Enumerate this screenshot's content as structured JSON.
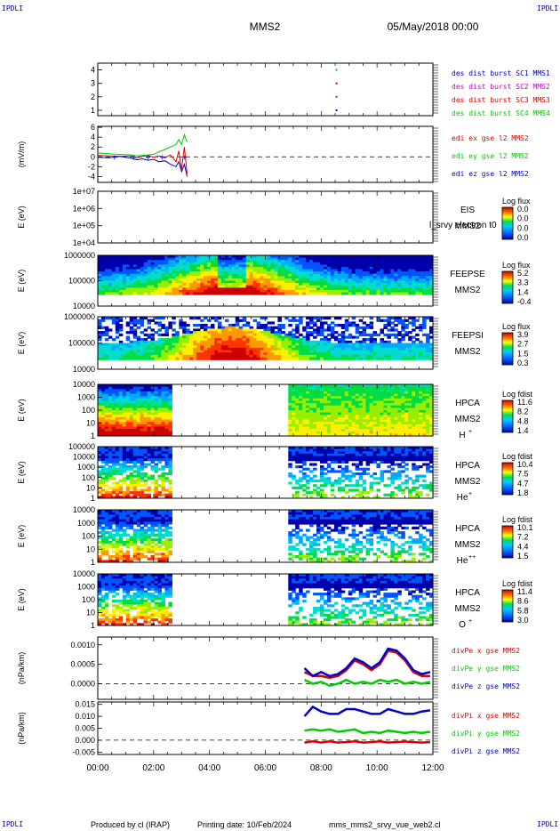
{
  "header": {
    "corner_label": "IPDLI",
    "spacecraft": "MMS2",
    "date": "05/May/2018 00:00"
  },
  "footer": {
    "producer": "Produced by cl (IRAP)",
    "printing": "Printing date: 10/Feb/2024",
    "script": "mms_mms2_srvy_vue_web2.cl"
  },
  "time_axis": {
    "ticks": [
      "00:00",
      "02:00",
      "04:00",
      "06:00",
      "08:00",
      "10:00",
      "12:00"
    ],
    "range_hours": [
      0,
      12
    ]
  },
  "colors": {
    "blue": "#0000cc",
    "magenta": "#cc00cc",
    "red": "#dd0000",
    "green": "#00cc00",
    "no_data_gap": "#ffffff"
  },
  "chart_data": [
    {
      "type": "scatter",
      "ylim": [
        0.6,
        4.5
      ],
      "yticks": [
        "4",
        "3",
        "2",
        "1"
      ],
      "ytick_values": [
        4,
        3,
        2,
        1
      ],
      "series": [
        {
          "name": "des dist burst SC1 MMS1",
          "color": "#0000cc",
          "points": [
            [
              8.55,
              1
            ]
          ]
        },
        {
          "name": "des dist burst SC2 MMS2",
          "color": "#cc00cc",
          "points": [
            [
              8.55,
              2
            ]
          ]
        },
        {
          "name": "des dist burst SC3 MMS3",
          "color": "#dd0000",
          "points": [
            [
              8.55,
              3
            ]
          ]
        },
        {
          "name": "des dist burst SC4 MMS4",
          "color": "#00cc00",
          "points": [
            [
              8.55,
              4
            ]
          ]
        }
      ]
    },
    {
      "type": "line",
      "ylabel": "(mV/m)",
      "ylim": [
        -5.2,
        6.2
      ],
      "yticks": [
        "6",
        "4",
        "2",
        "0",
        "-2",
        "-4"
      ],
      "ytick_values": [
        6,
        4,
        2,
        0,
        -2,
        -4
      ],
      "zero_line": true,
      "series": [
        {
          "name": "edi ex gse l2 MMS2",
          "color": "#dd0000"
        },
        {
          "name": "edi ey gse l2 MMS2",
          "color": "#00cc00"
        },
        {
          "name": "edi ez gse l2 MMS2",
          "color": "#0000cc"
        }
      ],
      "x": [
        0.0,
        0.4,
        0.8,
        1.2,
        1.4,
        1.6,
        1.8,
        2.0,
        2.2,
        2.4,
        2.6,
        2.8,
        2.9,
        3.0,
        3.1,
        3.2
      ],
      "values": {
        "ex": [
          0.3,
          0.2,
          0.1,
          0.2,
          -0.2,
          0.1,
          0.3,
          -0.1,
          0.2,
          -0.2,
          0.4,
          -1.0,
          1.2,
          -2.5,
          2.0,
          -3.5
        ],
        "ey": [
          0.8,
          0.6,
          0.5,
          0.4,
          0.2,
          0.3,
          0.4,
          0.5,
          1.0,
          1.5,
          2.0,
          2.5,
          3.5,
          2.5,
          4.5,
          3.0
        ],
        "ez": [
          -0.1,
          -0.2,
          0.1,
          -0.3,
          -0.6,
          -0.4,
          -0.7,
          -0.5,
          -1.0,
          -0.8,
          -1.5,
          -2.0,
          -1.0,
          -3.0,
          -1.5,
          -4.0
        ]
      }
    },
    {
      "type": "heatmap",
      "ylabel": "E (eV)",
      "yticks": [
        "1e+07",
        "1e+06",
        "1e+05",
        "1e+04"
      ],
      "instrument": "EIS",
      "spacecraft": "MMS2",
      "colorbar_title": "Log flux",
      "colorbar_ticks": [
        "0.0",
        "0.0",
        "0.0",
        "0.0"
      ],
      "overlay_text": "l_srvy electron t0",
      "empty": true
    },
    {
      "type": "heatmap",
      "ylabel": "E (eV)",
      "yticks": [
        "1000000",
        "100000",
        "10000"
      ],
      "instrument": "FEEPSE",
      "spacecraft": "MMS2",
      "colorbar_title": "Log flux",
      "colorbar_ticks": [
        "5.2",
        "3.3",
        "1.4",
        "-0.4"
      ]
    },
    {
      "type": "heatmap",
      "ylabel": "E (eV)",
      "yticks": [
        "1000000",
        "100000",
        "10000"
      ],
      "instrument": "FEEPSI",
      "spacecraft": "MMS2",
      "colorbar_title": "Log flux",
      "colorbar_ticks": [
        "3.9",
        "2.7",
        "1.5",
        "0.3"
      ]
    },
    {
      "type": "heatmap",
      "ylabel": "E (eV)",
      "yticks": [
        "10000",
        "1000",
        "100",
        "10",
        "1"
      ],
      "instrument": "HPCA",
      "spacecraft": "MMS2",
      "species": "H",
      "charge": "+",
      "colorbar_title": "Log fdist",
      "colorbar_ticks": [
        "11.6",
        "8.2",
        "4.8",
        "1.4"
      ],
      "data_gap_hours": [
        2.6,
        6.85
      ]
    },
    {
      "type": "heatmap",
      "ylabel": "E (eV)",
      "yticks": [
        "100000",
        "10000",
        "1000",
        "100",
        "10",
        "1"
      ],
      "instrument": "HPCA",
      "spacecraft": "MMS2",
      "species": "He",
      "charge": "+",
      "colorbar_title": "Log fdist",
      "colorbar_ticks": [
        "10.4",
        "7.5",
        "4.7",
        "1.8"
      ],
      "data_gap_hours": [
        2.6,
        6.85
      ]
    },
    {
      "type": "heatmap",
      "ylabel": "E (eV)",
      "yticks": [
        "10000",
        "1000",
        "100",
        "10",
        "1"
      ],
      "instrument": "HPCA",
      "spacecraft": "MMS2",
      "species": "He",
      "charge": "++",
      "colorbar_title": "Log fdist",
      "colorbar_ticks": [
        "10.1",
        "7.2",
        "4.4",
        "1.5"
      ],
      "data_gap_hours": [
        2.6,
        6.85
      ]
    },
    {
      "type": "heatmap",
      "ylabel": "E (eV)",
      "yticks": [
        "10000",
        "1000",
        "100",
        "10",
        "1"
      ],
      "instrument": "HPCA",
      "spacecraft": "MMS2",
      "species": "O",
      "charge": "+",
      "colorbar_title": "Log fdist",
      "colorbar_ticks": [
        "11.4",
        "8.6",
        "5.8",
        "3.0"
      ],
      "data_gap_hours": [
        2.6,
        6.85
      ]
    },
    {
      "type": "line",
      "ylabel": "(nPa/km)",
      "ylim": [
        -0.0004,
        0.0012
      ],
      "yticks": [
        "0.0010",
        "0.0005",
        "0.0000"
      ],
      "ytick_values": [
        0.001,
        0.0005,
        0.0
      ],
      "zero_line": true,
      "series": [
        {
          "name": "divPe x gse MMS2",
          "color": "#dd0000"
        },
        {
          "name": "divPe y gse MMS2",
          "color": "#00cc00"
        },
        {
          "name": "divPe z gse MMS2",
          "color": "#0000cc"
        }
      ],
      "x": [
        7.4,
        7.7,
        8.0,
        8.3,
        8.6,
        8.9,
        9.2,
        9.5,
        9.8,
        10.1,
        10.4,
        10.7,
        11.0,
        11.3,
        11.6,
        11.9
      ],
      "values": {
        "x": [
          0.0003,
          0.0002,
          0.0002,
          0.00015,
          0.0002,
          0.00035,
          0.0006,
          0.0005,
          0.00035,
          0.0005,
          0.00085,
          0.0008,
          0.0006,
          0.0003,
          0.0002,
          0.0002
        ],
        "y": [
          0.0001,
          0.0,
          5e-05,
          -5e-05,
          0.0,
          0.0001,
          0.0,
          5e-05,
          0.0,
          0.0001,
          5e-05,
          0.0001,
          0.0,
          5e-05,
          0.0,
          5e-05
        ],
        "z": [
          0.0004,
          0.0002,
          0.0003,
          0.0002,
          0.00025,
          0.0004,
          0.00065,
          0.00055,
          0.0004,
          0.00055,
          0.0009,
          0.00085,
          0.00065,
          0.00035,
          0.00025,
          0.0003
        ]
      }
    },
    {
      "type": "line",
      "ylabel": "(nPa/km)",
      "ylim": [
        -0.006,
        0.016
      ],
      "yticks": [
        "0.015",
        "0.010",
        "0.005",
        "0.000",
        "-0.005"
      ],
      "ytick_values": [
        0.015,
        0.01,
        0.005,
        0.0,
        -0.005
      ],
      "zero_line": true,
      "series": [
        {
          "name": "divPi x gse MMS2",
          "color": "#dd0000"
        },
        {
          "name": "divPi y gse MMS2",
          "color": "#00cc00"
        },
        {
          "name": "divPi z gse MMS2",
          "color": "#0000cc"
        }
      ],
      "x": [
        7.4,
        7.7,
        8.0,
        8.3,
        8.6,
        8.9,
        9.2,
        9.5,
        9.8,
        10.1,
        10.4,
        10.7,
        11.0,
        11.3,
        11.6,
        11.9
      ],
      "values": {
        "x": [
          -0.001,
          -0.0005,
          -0.001,
          -0.0005,
          -0.001,
          -0.0008,
          -0.0005,
          -0.001,
          -0.0008,
          -0.0005,
          -0.001,
          -0.0008,
          -0.0006,
          -0.0008,
          -0.001,
          -0.0008
        ],
        "y": [
          0.004,
          0.0045,
          0.004,
          0.0045,
          0.0035,
          0.004,
          0.0045,
          0.003,
          0.0035,
          0.003,
          0.004,
          0.0035,
          0.003,
          0.0035,
          0.003,
          0.0035
        ],
        "z": [
          0.01,
          0.014,
          0.012,
          0.011,
          0.011,
          0.013,
          0.013,
          0.012,
          0.011,
          0.011,
          0.013,
          0.012,
          0.011,
          0.011,
          0.012,
          0.0125
        ]
      }
    }
  ]
}
